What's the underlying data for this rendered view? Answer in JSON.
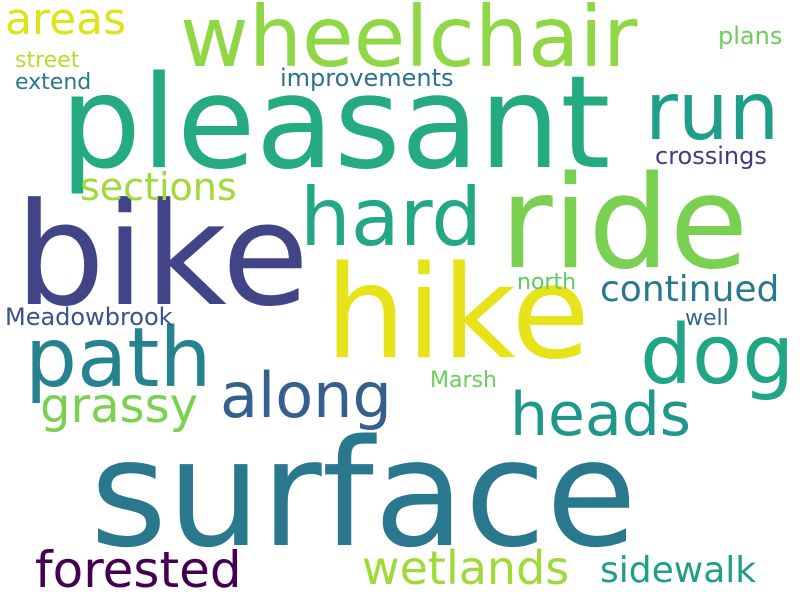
{
  "words": [
    {
      "text": "surface"
    },
    {
      "text": "pleasant"
    },
    {
      "text": "bike"
    },
    {
      "text": "ride"
    },
    {
      "text": "hike"
    },
    {
      "text": "wheelchair"
    },
    {
      "text": "run"
    },
    {
      "text": "hard"
    },
    {
      "text": "path"
    },
    {
      "text": "dog"
    },
    {
      "text": "along"
    },
    {
      "text": "heads"
    },
    {
      "text": "grassy"
    },
    {
      "text": "areas"
    },
    {
      "text": "sections"
    },
    {
      "text": "continued"
    },
    {
      "text": "forested"
    },
    {
      "text": "wetlands"
    },
    {
      "text": "sidewalk"
    },
    {
      "text": "crossings"
    },
    {
      "text": "improvements"
    },
    {
      "text": "plans"
    },
    {
      "text": "street"
    },
    {
      "text": "extend"
    },
    {
      "text": "Meadowbrook"
    },
    {
      "text": "north"
    },
    {
      "text": "well"
    },
    {
      "text": "Marsh"
    }
  ]
}
